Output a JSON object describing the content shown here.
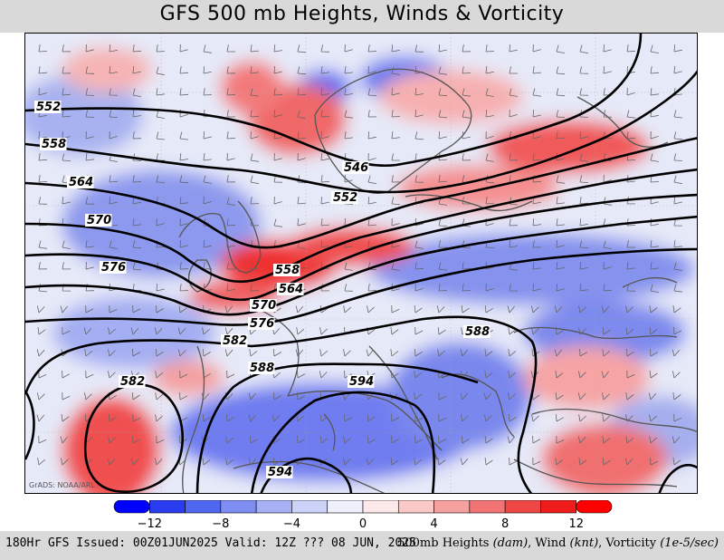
{
  "title": "GFS 500 mb Heights, Winds & Vorticity",
  "credit": "GrADS: NOAA/ARL",
  "contour_labels": [
    "546",
    "552",
    "552",
    "558",
    "558",
    "564",
    "564",
    "570",
    "570",
    "576",
    "576",
    "582",
    "582",
    "588",
    "588",
    "594",
    "594"
  ],
  "colorbar": {
    "ticks": [
      "−12",
      "−8",
      "−4",
      "0",
      "4",
      "8",
      "12"
    ],
    "colors": [
      "#0000ff",
      "#2a3cf0",
      "#4f66f0",
      "#7d8df2",
      "#a6b0f4",
      "#cdd2f8",
      "#eef0fc",
      "#fde9e9",
      "#fbc8c8",
      "#f7a0a0",
      "#f37474",
      "#ef4646",
      "#f01c1c",
      "#ff0000"
    ]
  },
  "footer": {
    "left": "180Hr GFS Issued: 00Z01JUN2025 Valid: 12Z ??? 08 JUN, 2025",
    "right_prefix": "500mb Heights ",
    "right_u1": "(dam)",
    "right_mid1": ", Wind ",
    "right_u2": "(knt)",
    "right_mid2": ", Vorticity ",
    "right_u3": "(1e-5/sec)"
  }
}
